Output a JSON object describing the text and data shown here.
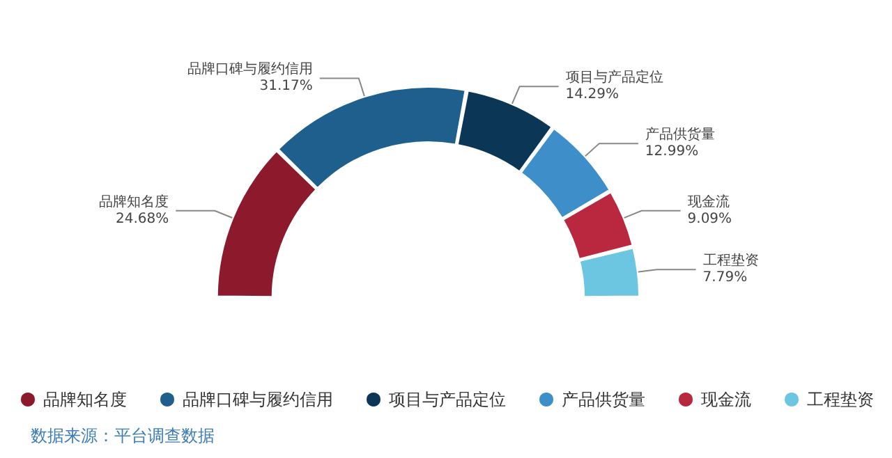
{
  "chart_data": {
    "type": "donut",
    "categories": [
      "品牌知名度",
      "品牌口碑与履约信用",
      "项目与产品定位",
      "产品供货量",
      "现金流",
      "工程垫资"
    ],
    "values": [
      24.68,
      31.17,
      14.29,
      12.99,
      9.09,
      7.79
    ],
    "colors": [
      "#8c1a2c",
      "#1f5f8e",
      "#0c3656",
      "#3d8ec9",
      "#b9283f",
      "#6cc6e2"
    ],
    "value_labels": [
      "24.68%",
      "31.17%",
      "14.29%",
      "12.99%",
      "9.09%",
      "7.79%"
    ],
    "legend": "bottom",
    "annotations": [
      "数据来源：平台调查数据"
    ]
  }
}
